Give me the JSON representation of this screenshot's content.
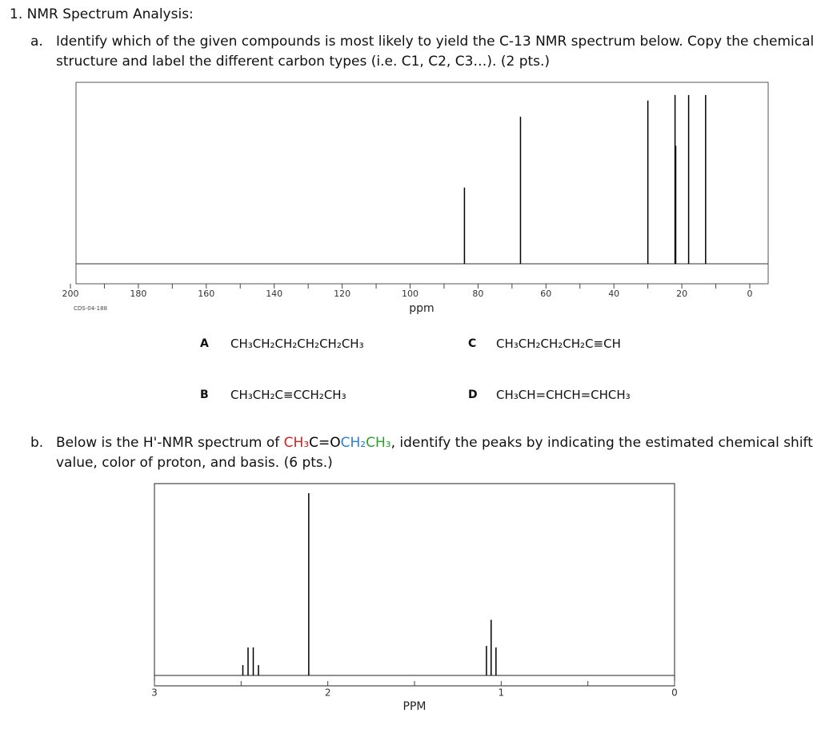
{
  "document": {
    "heading": "1. NMR Spectrum Analysis:",
    "part_a": {
      "label": "a.",
      "text": "Identify which of the given compounds is most likely to yield the C-13 NMR spectrum below. Copy the chemical structure and label the different carbon types (i.e. C1, C2, C3…). (2 pts.)"
    },
    "options": [
      {
        "letter": "A",
        "formula": "CH₃CH₂CH₂CH₂CH₂CH₃"
      },
      {
        "letter": "C",
        "formula": "CH₃CH₂CH₂CH₂C≡CH"
      },
      {
        "letter": "B",
        "formula": "CH₃CH₂C≡CCH₂CH₃"
      },
      {
        "letter": "D",
        "formula": "CH₃CH=CHCH=CHCH₃"
      }
    ],
    "part_b": {
      "label": "b.",
      "before": "Below is the H'-NMR spectrum of ",
      "parts": [
        {
          "text": "CH₃",
          "color": "#d42020"
        },
        {
          "text": "C=O",
          "color": "#000000"
        },
        {
          "text": "CH₂",
          "color": "#2a7fd4"
        },
        {
          "text": "CH₃",
          "color": "#2ea02e"
        }
      ],
      "after": ", identify the peaks by indicating the estimated chemical shift value, color of proton, and basis. (6 pts.)"
    }
  },
  "chart_data": [
    {
      "type": "spectrum",
      "xlabel": "ppm",
      "note": "CDS-04-188",
      "color": "#000000",
      "x": [
        84,
        67.5,
        30,
        22,
        21.8,
        18,
        13
      ],
      "values": [
        42,
        81,
        90,
        93,
        65,
        93,
        93
      ],
      "xlim": [
        200,
        0
      ],
      "ylim": [
        -11,
        100
      ],
      "xticks": [
        200,
        180,
        160,
        140,
        120,
        100,
        80,
        60,
        40,
        20,
        0
      ],
      "minor_xticks": [
        190,
        170,
        150,
        130,
        110,
        90,
        70,
        50,
        30,
        10
      ]
    },
    {
      "type": "spectrum",
      "xlabel": "PPM",
      "color": "#000000",
      "x": [
        2.49,
        2.46,
        2.43,
        2.4,
        2.11,
        1.085,
        1.058,
        1.03
      ],
      "values": [
        5.4,
        14.6,
        14.6,
        5.4,
        95,
        15.4,
        29,
        14.6
      ],
      "xlim": [
        3,
        0
      ],
      "ylim": [
        -5.4,
        100
      ],
      "xticks": [
        3,
        2,
        1,
        0
      ],
      "minor_xticks": [
        2.5,
        1.5,
        0.5
      ]
    }
  ]
}
